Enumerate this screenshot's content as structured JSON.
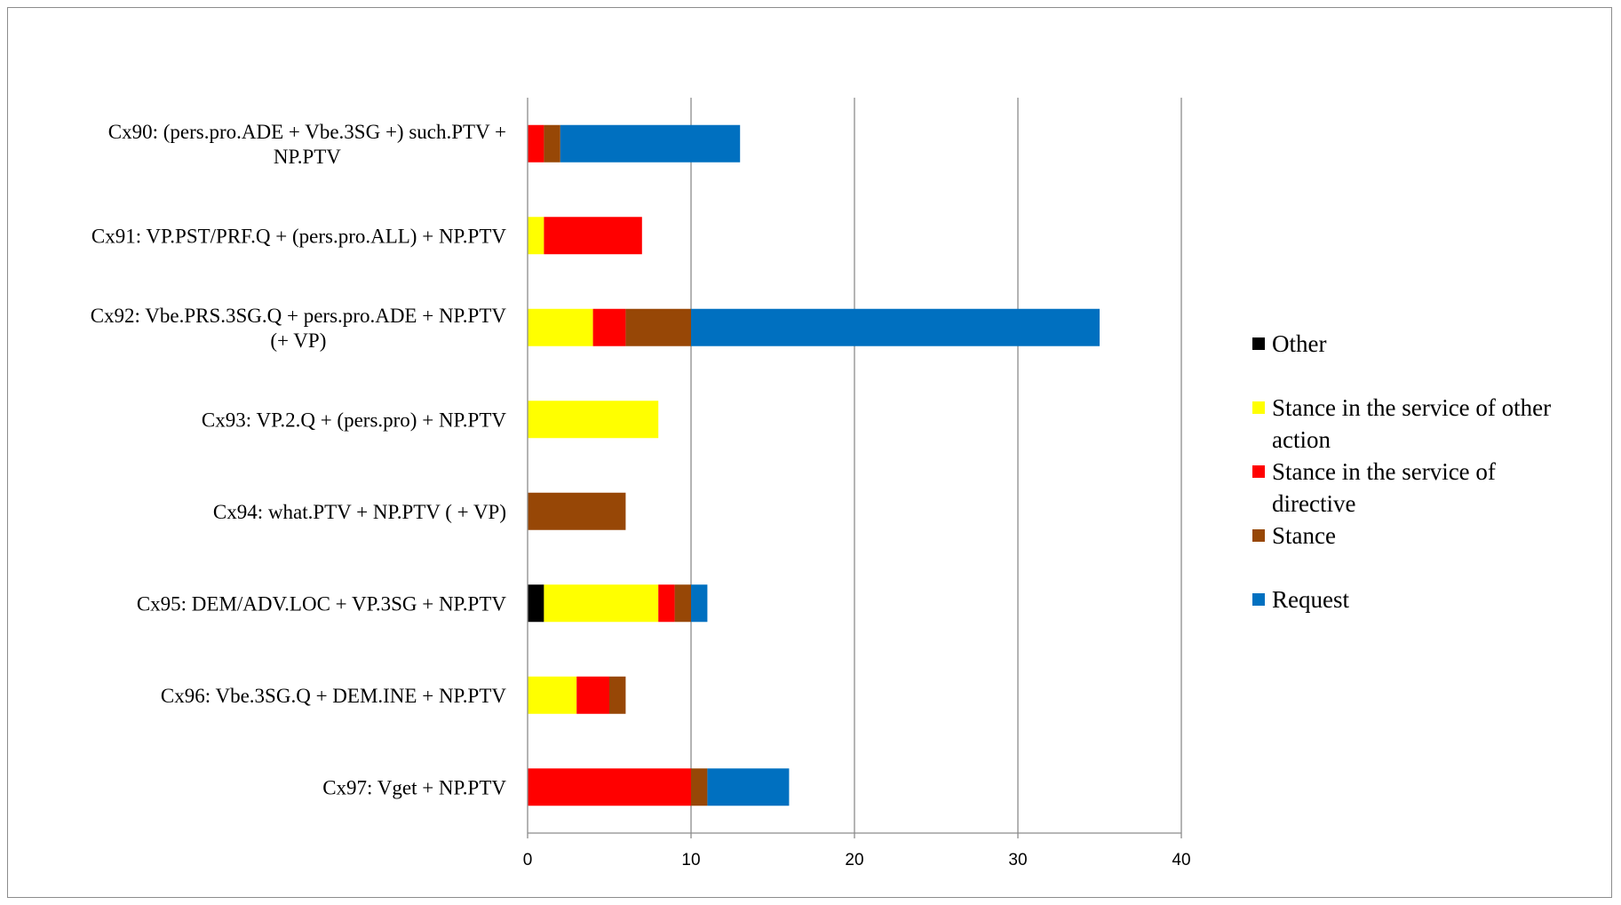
{
  "chart_data": {
    "type": "bar",
    "orientation": "horizontal",
    "stacked": true,
    "categories": [
      [
        "Cx90: (pers.pro.ADE + Vbe.3SG +) such.PTV +",
        "NP.PTV"
      ],
      [
        "Cx91: VP.PST/PRF.Q + (pers.pro.ALL) + NP.PTV"
      ],
      [
        "Cx92: Vbe.PRS.3SG.Q + pers.pro.ADE + NP.PTV",
        "(+ VP)"
      ],
      [
        "Cx93: VP.2.Q + (pers.pro) + NP.PTV"
      ],
      [
        "Cx94: what.PTV + NP.PTV ( + VP)"
      ],
      [
        "Cx95: DEM/ADV.LOC + VP.3SG + NP.PTV"
      ],
      [
        "Cx96: Vbe.3SG.Q + DEM.INE + NP.PTV"
      ],
      [
        "Cx97: Vget + NP.PTV"
      ]
    ],
    "series": [
      {
        "name": "Other",
        "color": "#000000",
        "values": [
          0,
          0,
          0,
          0,
          0,
          1,
          0,
          0
        ]
      },
      {
        "name": "Stance in the service of other action",
        "color": "#ffff00",
        "values": [
          0,
          1,
          4,
          8,
          0,
          7,
          3,
          0
        ]
      },
      {
        "name": "Stance in the service of directive",
        "color": "#ff0000",
        "values": [
          1,
          6,
          2,
          0,
          0,
          1,
          2,
          10
        ]
      },
      {
        "name": "Stance",
        "color": "#974706",
        "values": [
          1,
          0,
          4,
          0,
          6,
          1,
          1,
          1
        ]
      },
      {
        "name": "Request",
        "color": "#0070c0",
        "values": [
          11,
          0,
          25,
          0,
          0,
          1,
          0,
          5
        ]
      }
    ],
    "xlim": [
      0,
      40
    ],
    "xticks": [
      0,
      10,
      20,
      30,
      40
    ],
    "grid": true,
    "legend": {
      "position": "right",
      "entries": [
        {
          "marker": "#000000",
          "lines": [
            "Other"
          ]
        },
        {
          "marker": "#ffff00",
          "lines": [
            "Stance in the service of other",
            "action"
          ]
        },
        {
          "marker": "#ff0000",
          "lines": [
            "Stance in the service of",
            "directive"
          ]
        },
        {
          "marker": "#974706",
          "lines": [
            "Stance"
          ]
        },
        {
          "marker": "#0070c0",
          "lines": [
            "Request"
          ]
        }
      ]
    },
    "title": "",
    "xlabel": "",
    "ylabel": ""
  }
}
